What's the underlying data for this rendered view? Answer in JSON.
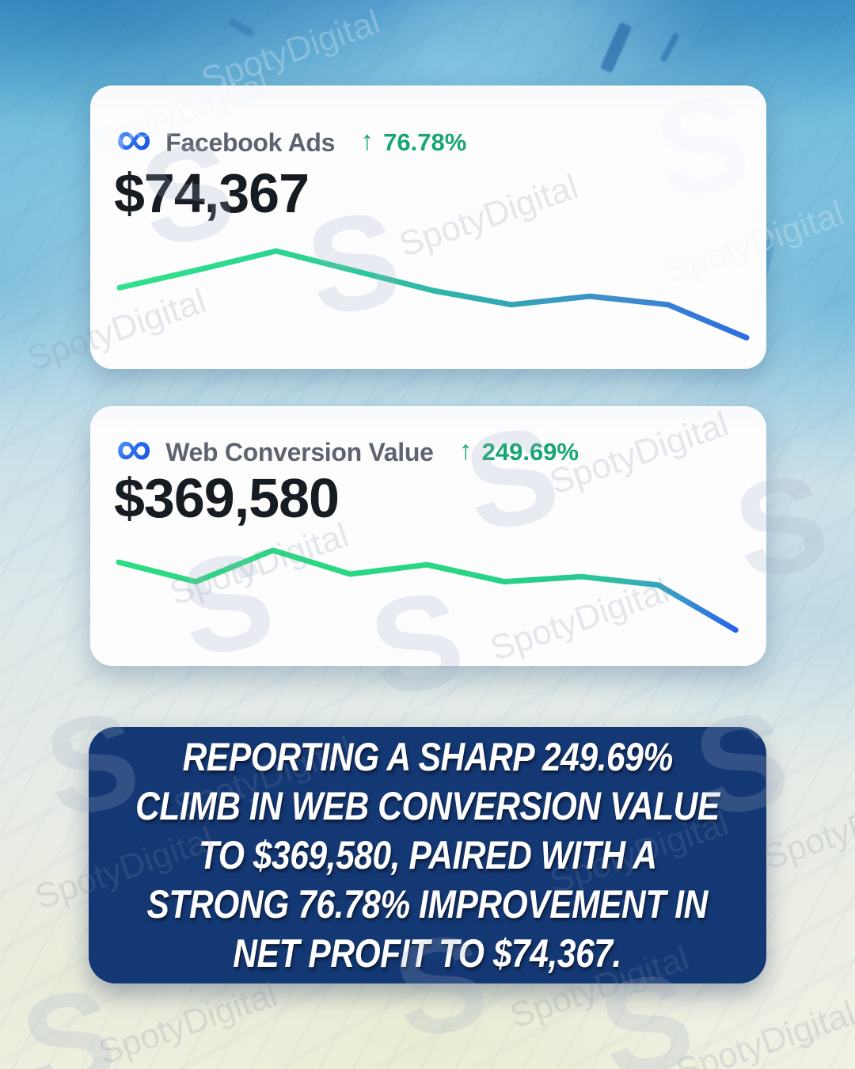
{
  "cards": [
    {
      "id": "facebook-ads",
      "logo_glyph": "∞",
      "label": "Facebook Ads",
      "trend_icon": "↑",
      "trend_value": "76.78%",
      "value": "$74,367"
    },
    {
      "id": "web-conversion-value",
      "logo_glyph": "∞",
      "label": "Web Conversion Value",
      "trend_icon": "↑",
      "trend_value": "249.69%",
      "value": "$369,580"
    }
  ],
  "chart_data": [
    {
      "id": "facebook-ads",
      "type": "line",
      "title": "Facebook Ads",
      "metric_value": "$74,367",
      "change_percent": "+76.78%",
      "x": [
        1,
        2,
        3,
        4,
        5,
        6,
        7,
        8,
        9
      ],
      "values": [
        61,
        80,
        100,
        79,
        58,
        43,
        52,
        43,
        8
      ],
      "value_scale": "relative 0-100, sparkline without axes or gridlines",
      "grid": false,
      "axes": false,
      "legend": false,
      "line_gradient": [
        [
          "0%",
          "#2fe28c"
        ],
        [
          "30%",
          "#2bd392"
        ],
        [
          "55%",
          "#2fb0ad"
        ],
        [
          "80%",
          "#3f8ccc"
        ],
        [
          "100%",
          "#2d6ce2"
        ]
      ]
    },
    {
      "id": "web-conversion-value",
      "type": "line",
      "title": "Web Conversion Value",
      "metric_value": "$369,580",
      "change_percent": "+249.69%",
      "x": [
        1,
        2,
        3,
        4,
        5,
        6,
        7,
        8,
        9
      ],
      "values": [
        86,
        63,
        100,
        72,
        83,
        63,
        69,
        59,
        6
      ],
      "value_scale": "relative 0-100, sparkline without axes or gridlines",
      "grid": false,
      "axes": false,
      "legend": false,
      "line_gradient": [
        [
          "0%",
          "#2bdc82"
        ],
        [
          "60%",
          "#27d584"
        ],
        [
          "78%",
          "#2cc49b"
        ],
        [
          "90%",
          "#3a9bc8"
        ],
        [
          "100%",
          "#2563eb"
        ]
      ]
    }
  ],
  "caption": {
    "lines": [
      "REPORTING A SHARP 249.69%",
      "CLIMB IN WEB CONVERSION VALUE",
      "TO $369,580, PAIRED WITH A",
      "STRONG 76.78% IMPROVEMENT IN",
      "NET PROFIT TO $74,367."
    ]
  },
  "watermark": {
    "text": "SpotyDigital",
    "logo_letter": "S"
  },
  "colors": {
    "trend_green": "#17a673",
    "label_gray": "#5d6470",
    "value_text": "#171b22",
    "card_bg": "#fdfdfe",
    "caption_bg": "#143874",
    "caption_text": "#ffffff",
    "meta_blue_light": "#6aaef9",
    "meta_blue_dark": "#1450d8"
  }
}
